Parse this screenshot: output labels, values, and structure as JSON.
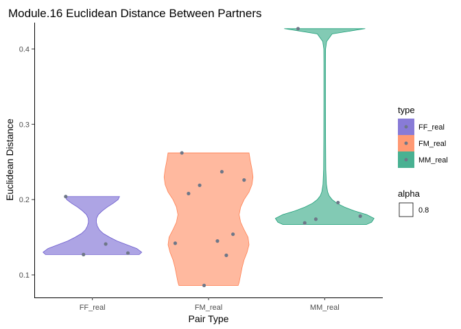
{
  "chart_data": {
    "type": "violin",
    "title": "Module.16 Euclidean Distance Between Partners",
    "xlabel": "Pair Type",
    "ylabel": "Euclidean Distance",
    "categories": [
      "FF_real",
      "FM_real",
      "MM_real"
    ],
    "ylim": [
      0.07,
      0.435
    ],
    "yticks": [
      0.1,
      0.2,
      0.3,
      0.4
    ],
    "ytick_labels": [
      "0.1",
      "0.2",
      "0.3",
      "0.4"
    ],
    "grid": false,
    "legend_position": "right",
    "series": [
      {
        "name": "FF_real",
        "color": "#6A5ACD",
        "points": [
          0.204,
          0.141,
          0.129,
          0.127
        ],
        "density": [
          [
            0.127,
            0.95
          ],
          [
            0.13,
            1.0
          ],
          [
            0.135,
            0.9
          ],
          [
            0.14,
            0.7
          ],
          [
            0.145,
            0.5
          ],
          [
            0.15,
            0.35
          ],
          [
            0.155,
            0.22
          ],
          [
            0.16,
            0.14
          ],
          [
            0.165,
            0.1
          ],
          [
            0.17,
            0.08
          ],
          [
            0.175,
            0.085
          ],
          [
            0.18,
            0.12
          ],
          [
            0.185,
            0.2
          ],
          [
            0.19,
            0.3
          ],
          [
            0.195,
            0.42
          ],
          [
            0.2,
            0.52
          ],
          [
            0.204,
            0.55
          ]
        ]
      },
      {
        "name": "FM_real",
        "color": "#FF7F50",
        "points": [
          0.262,
          0.237,
          0.226,
          0.219,
          0.208,
          0.154,
          0.145,
          0.142,
          0.126,
          0.086
        ],
        "density": [
          [
            0.086,
            0.6
          ],
          [
            0.09,
            0.62
          ],
          [
            0.1,
            0.65
          ],
          [
            0.11,
            0.68
          ],
          [
            0.12,
            0.72
          ],
          [
            0.13,
            0.78
          ],
          [
            0.14,
            0.82
          ],
          [
            0.15,
            0.8
          ],
          [
            0.16,
            0.72
          ],
          [
            0.17,
            0.65
          ],
          [
            0.18,
            0.62
          ],
          [
            0.19,
            0.65
          ],
          [
            0.2,
            0.72
          ],
          [
            0.21,
            0.82
          ],
          [
            0.22,
            0.88
          ],
          [
            0.23,
            0.9
          ],
          [
            0.24,
            0.88
          ],
          [
            0.25,
            0.85
          ],
          [
            0.262,
            0.82
          ]
        ]
      },
      {
        "name": "MM_real",
        "color": "#1B9E77",
        "points": [
          0.427,
          0.196,
          0.178,
          0.174,
          0.169
        ],
        "density": [
          [
            0.167,
            0.85
          ],
          [
            0.17,
            0.95
          ],
          [
            0.175,
            1.0
          ],
          [
            0.18,
            0.85
          ],
          [
            0.185,
            0.6
          ],
          [
            0.19,
            0.4
          ],
          [
            0.195,
            0.25
          ],
          [
            0.2,
            0.15
          ],
          [
            0.205,
            0.09
          ],
          [
            0.21,
            0.06
          ],
          [
            0.22,
            0.035
          ],
          [
            0.24,
            0.022
          ],
          [
            0.28,
            0.018
          ],
          [
            0.33,
            0.016
          ],
          [
            0.38,
            0.016
          ],
          [
            0.4,
            0.018
          ],
          [
            0.41,
            0.04
          ],
          [
            0.42,
            0.15
          ],
          [
            0.427,
            0.82
          ]
        ]
      }
    ],
    "legend": {
      "title": "type",
      "entries": [
        "FF_real",
        "FM_real",
        "MM_real"
      ],
      "alpha_title": "alpha",
      "alpha_value": "0.8"
    }
  }
}
